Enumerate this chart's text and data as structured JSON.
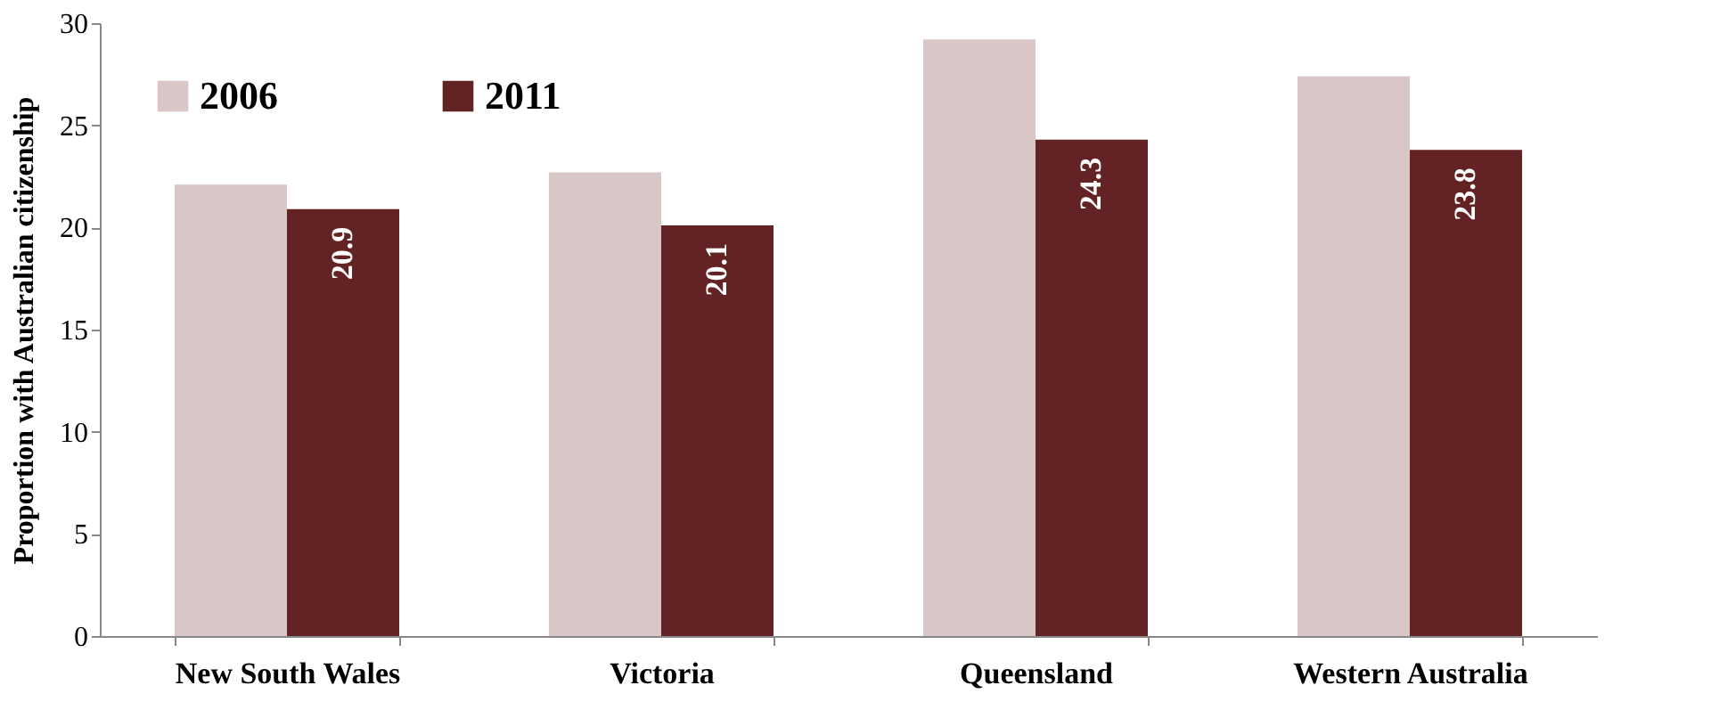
{
  "chart_data": {
    "type": "bar",
    "ylabel": "Proportion with Australian citizenship",
    "categories": [
      "New South Wales",
      "Victoria",
      "Queensland",
      "Western Australia"
    ],
    "series": [
      {
        "name": "2006",
        "color": "#d9c6c6",
        "values": [
          22.1,
          22.7,
          29.2,
          27.4
        ]
      },
      {
        "name": "2011",
        "color": "#632324",
        "values": [
          20.9,
          20.1,
          24.3,
          23.8
        ],
        "value_labels": [
          "20.9",
          "20.1",
          "24.3",
          "23.8"
        ]
      }
    ],
    "ylim": [
      0,
      30
    ],
    "yticks": [
      0,
      5,
      10,
      15,
      20,
      25,
      30
    ],
    "grid": false,
    "legend": "top left"
  }
}
